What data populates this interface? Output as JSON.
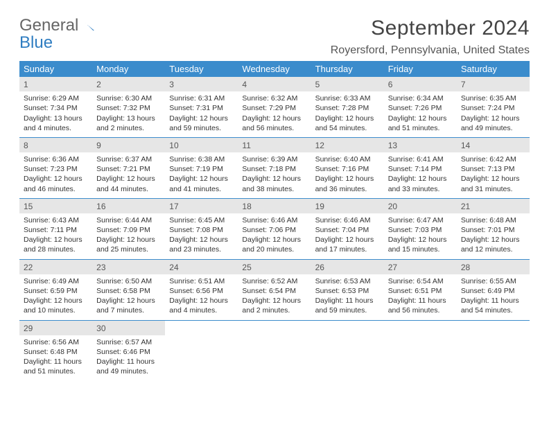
{
  "brand": {
    "part1": "General",
    "part2": "Blue"
  },
  "title": "September 2024",
  "location": "Royersford, Pennsylvania, United States",
  "colors": {
    "header_bg": "#3b8ccc",
    "header_fg": "#ffffff",
    "daynum_bg": "#e6e6e6",
    "rule": "#3b8ccc",
    "brand_accent": "#2f7dc1"
  },
  "weekdays": [
    "Sunday",
    "Monday",
    "Tuesday",
    "Wednesday",
    "Thursday",
    "Friday",
    "Saturday"
  ],
  "rows": [
    [
      {
        "n": "1",
        "sunrise": "Sunrise: 6:29 AM",
        "sunset": "Sunset: 7:34 PM",
        "daylight": "Daylight: 13 hours and 4 minutes."
      },
      {
        "n": "2",
        "sunrise": "Sunrise: 6:30 AM",
        "sunset": "Sunset: 7:32 PM",
        "daylight": "Daylight: 13 hours and 2 minutes."
      },
      {
        "n": "3",
        "sunrise": "Sunrise: 6:31 AM",
        "sunset": "Sunset: 7:31 PM",
        "daylight": "Daylight: 12 hours and 59 minutes."
      },
      {
        "n": "4",
        "sunrise": "Sunrise: 6:32 AM",
        "sunset": "Sunset: 7:29 PM",
        "daylight": "Daylight: 12 hours and 56 minutes."
      },
      {
        "n": "5",
        "sunrise": "Sunrise: 6:33 AM",
        "sunset": "Sunset: 7:28 PM",
        "daylight": "Daylight: 12 hours and 54 minutes."
      },
      {
        "n": "6",
        "sunrise": "Sunrise: 6:34 AM",
        "sunset": "Sunset: 7:26 PM",
        "daylight": "Daylight: 12 hours and 51 minutes."
      },
      {
        "n": "7",
        "sunrise": "Sunrise: 6:35 AM",
        "sunset": "Sunset: 7:24 PM",
        "daylight": "Daylight: 12 hours and 49 minutes."
      }
    ],
    [
      {
        "n": "8",
        "sunrise": "Sunrise: 6:36 AM",
        "sunset": "Sunset: 7:23 PM",
        "daylight": "Daylight: 12 hours and 46 minutes."
      },
      {
        "n": "9",
        "sunrise": "Sunrise: 6:37 AM",
        "sunset": "Sunset: 7:21 PM",
        "daylight": "Daylight: 12 hours and 44 minutes."
      },
      {
        "n": "10",
        "sunrise": "Sunrise: 6:38 AM",
        "sunset": "Sunset: 7:19 PM",
        "daylight": "Daylight: 12 hours and 41 minutes."
      },
      {
        "n": "11",
        "sunrise": "Sunrise: 6:39 AM",
        "sunset": "Sunset: 7:18 PM",
        "daylight": "Daylight: 12 hours and 38 minutes."
      },
      {
        "n": "12",
        "sunrise": "Sunrise: 6:40 AM",
        "sunset": "Sunset: 7:16 PM",
        "daylight": "Daylight: 12 hours and 36 minutes."
      },
      {
        "n": "13",
        "sunrise": "Sunrise: 6:41 AM",
        "sunset": "Sunset: 7:14 PM",
        "daylight": "Daylight: 12 hours and 33 minutes."
      },
      {
        "n": "14",
        "sunrise": "Sunrise: 6:42 AM",
        "sunset": "Sunset: 7:13 PM",
        "daylight": "Daylight: 12 hours and 31 minutes."
      }
    ],
    [
      {
        "n": "15",
        "sunrise": "Sunrise: 6:43 AM",
        "sunset": "Sunset: 7:11 PM",
        "daylight": "Daylight: 12 hours and 28 minutes."
      },
      {
        "n": "16",
        "sunrise": "Sunrise: 6:44 AM",
        "sunset": "Sunset: 7:09 PM",
        "daylight": "Daylight: 12 hours and 25 minutes."
      },
      {
        "n": "17",
        "sunrise": "Sunrise: 6:45 AM",
        "sunset": "Sunset: 7:08 PM",
        "daylight": "Daylight: 12 hours and 23 minutes."
      },
      {
        "n": "18",
        "sunrise": "Sunrise: 6:46 AM",
        "sunset": "Sunset: 7:06 PM",
        "daylight": "Daylight: 12 hours and 20 minutes."
      },
      {
        "n": "19",
        "sunrise": "Sunrise: 6:46 AM",
        "sunset": "Sunset: 7:04 PM",
        "daylight": "Daylight: 12 hours and 17 minutes."
      },
      {
        "n": "20",
        "sunrise": "Sunrise: 6:47 AM",
        "sunset": "Sunset: 7:03 PM",
        "daylight": "Daylight: 12 hours and 15 minutes."
      },
      {
        "n": "21",
        "sunrise": "Sunrise: 6:48 AM",
        "sunset": "Sunset: 7:01 PM",
        "daylight": "Daylight: 12 hours and 12 minutes."
      }
    ],
    [
      {
        "n": "22",
        "sunrise": "Sunrise: 6:49 AM",
        "sunset": "Sunset: 6:59 PM",
        "daylight": "Daylight: 12 hours and 10 minutes."
      },
      {
        "n": "23",
        "sunrise": "Sunrise: 6:50 AM",
        "sunset": "Sunset: 6:58 PM",
        "daylight": "Daylight: 12 hours and 7 minutes."
      },
      {
        "n": "24",
        "sunrise": "Sunrise: 6:51 AM",
        "sunset": "Sunset: 6:56 PM",
        "daylight": "Daylight: 12 hours and 4 minutes."
      },
      {
        "n": "25",
        "sunrise": "Sunrise: 6:52 AM",
        "sunset": "Sunset: 6:54 PM",
        "daylight": "Daylight: 12 hours and 2 minutes."
      },
      {
        "n": "26",
        "sunrise": "Sunrise: 6:53 AM",
        "sunset": "Sunset: 6:53 PM",
        "daylight": "Daylight: 11 hours and 59 minutes."
      },
      {
        "n": "27",
        "sunrise": "Sunrise: 6:54 AM",
        "sunset": "Sunset: 6:51 PM",
        "daylight": "Daylight: 11 hours and 56 minutes."
      },
      {
        "n": "28",
        "sunrise": "Sunrise: 6:55 AM",
        "sunset": "Sunset: 6:49 PM",
        "daylight": "Daylight: 11 hours and 54 minutes."
      }
    ],
    [
      {
        "n": "29",
        "sunrise": "Sunrise: 6:56 AM",
        "sunset": "Sunset: 6:48 PM",
        "daylight": "Daylight: 11 hours and 51 minutes."
      },
      {
        "n": "30",
        "sunrise": "Sunrise: 6:57 AM",
        "sunset": "Sunset: 6:46 PM",
        "daylight": "Daylight: 11 hours and 49 minutes."
      },
      null,
      null,
      null,
      null,
      null
    ]
  ]
}
